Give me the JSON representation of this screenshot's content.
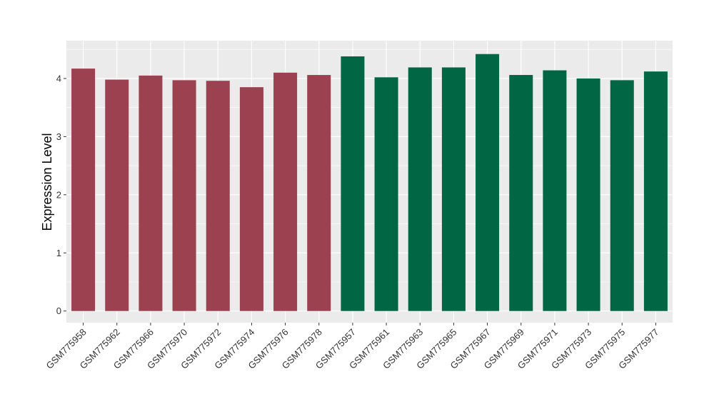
{
  "chart_data": {
    "type": "bar",
    "title": "",
    "xlabel": "",
    "ylabel": "Expression Level",
    "ylim": [
      -0.2,
      4.65
    ],
    "yticks": [
      0,
      1,
      2,
      3,
      4
    ],
    "grid": true,
    "categories": [
      "GSM775958",
      "GSM775962",
      "GSM775966",
      "GSM775970",
      "GSM775972",
      "GSM775974",
      "GSM775976",
      "GSM775978",
      "GSM775957",
      "GSM775961",
      "GSM775963",
      "GSM775965",
      "GSM775967",
      "GSM775969",
      "GSM775971",
      "GSM775973",
      "GSM775975",
      "GSM775977"
    ],
    "values": [
      4.17,
      3.98,
      4.05,
      3.97,
      3.96,
      3.85,
      4.1,
      4.06,
      4.38,
      4.02,
      4.19,
      4.19,
      4.42,
      4.06,
      4.14,
      4.0,
      3.97,
      4.12
    ],
    "groups": [
      0,
      0,
      0,
      0,
      0,
      0,
      0,
      0,
      1,
      1,
      1,
      1,
      1,
      1,
      1,
      1,
      1,
      1
    ],
    "colors": [
      "#9B4150",
      "#006643"
    ],
    "background": "#EBEBEB"
  }
}
